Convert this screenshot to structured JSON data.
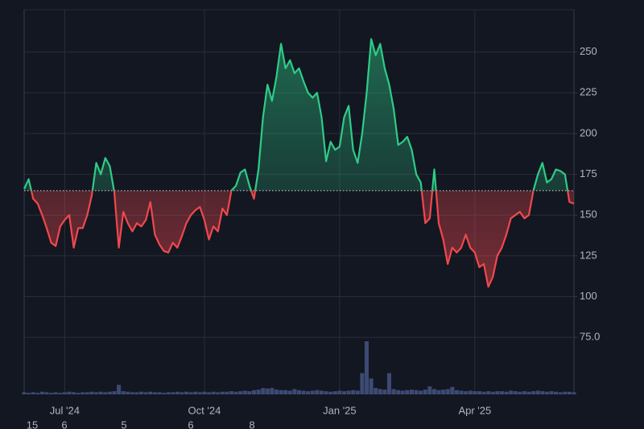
{
  "chart_data": {
    "type": "baseline",
    "categories": [
      null,
      null,
      null,
      null,
      null,
      null,
      null,
      null,
      null,
      "Jul '24",
      null,
      null,
      null,
      null,
      null,
      null,
      null,
      null,
      null,
      null,
      null,
      null,
      null,
      null,
      null,
      null,
      null,
      null,
      null,
      null,
      null,
      null,
      null,
      null,
      null,
      null,
      null,
      null,
      null,
      null,
      "Oct '24",
      null,
      null,
      null,
      null,
      null,
      null,
      null,
      null,
      null,
      null,
      null,
      null,
      null,
      null,
      null,
      null,
      null,
      null,
      null,
      null,
      null,
      null,
      null,
      null,
      null,
      null,
      null,
      null,
      null,
      "Jan '25",
      null,
      null,
      null,
      null,
      null,
      null,
      null,
      null,
      null,
      null,
      null,
      null,
      null,
      null,
      null,
      null,
      null,
      null,
      null,
      null,
      null,
      null,
      null,
      null,
      null,
      null,
      null,
      null,
      null,
      "Apr '25",
      null,
      null,
      null,
      null,
      null,
      null,
      null,
      null,
      null,
      null,
      null,
      null,
      null,
      null,
      null,
      null,
      null,
      null,
      null,
      null,
      null,
      null
    ],
    "values": [
      166,
      172,
      160,
      157,
      150,
      142,
      133,
      131,
      143,
      147,
      150,
      130,
      142,
      142,
      150,
      162,
      182,
      175,
      185,
      180,
      164,
      130,
      152,
      145,
      140,
      145,
      143,
      147,
      158,
      138,
      132,
      128,
      127,
      133,
      130,
      137,
      145,
      150,
      153,
      155,
      147,
      135,
      143,
      140,
      154,
      150,
      165,
      168,
      176,
      178,
      168,
      160,
      178,
      210,
      230,
      220,
      235,
      255,
      240,
      245,
      237,
      240,
      232,
      225,
      222,
      225,
      210,
      183,
      195,
      190,
      192,
      210,
      217,
      190,
      182,
      200,
      225,
      258,
      248,
      255,
      240,
      230,
      215,
      193,
      195,
      198,
      190,
      175,
      170,
      145,
      148,
      178,
      145,
      135,
      120,
      130,
      127,
      130,
      138,
      130,
      127,
      118,
      120,
      106,
      112,
      125,
      130,
      138,
      148,
      150,
      152,
      148,
      150,
      165,
      175,
      182,
      170,
      172,
      178,
      177,
      175,
      158,
      157
    ],
    "volume": [
      4,
      3,
      4,
      3,
      5,
      4,
      3,
      4,
      3,
      4,
      5,
      4,
      3,
      4,
      4,
      5,
      4,
      5,
      4,
      5,
      6,
      18,
      6,
      5,
      4,
      4,
      5,
      4,
      5,
      4,
      4,
      3,
      4,
      4,
      5,
      4,
      5,
      4,
      5,
      4,
      5,
      4,
      5,
      4,
      5,
      5,
      6,
      5,
      6,
      7,
      6,
      8,
      9,
      12,
      11,
      12,
      9,
      8,
      8,
      7,
      10,
      8,
      7,
      6,
      7,
      8,
      7,
      6,
      5,
      6,
      7,
      6,
      7,
      8,
      7,
      40,
      100,
      30,
      12,
      10,
      9,
      40,
      10,
      8,
      7,
      8,
      9,
      8,
      7,
      9,
      15,
      10,
      8,
      9,
      10,
      14,
      8,
      7,
      6,
      7,
      6,
      6,
      5,
      6,
      5,
      6,
      6,
      5,
      7,
      6,
      5,
      6,
      5,
      6,
      7,
      6,
      5,
      6,
      5,
      4,
      5,
      5,
      4
    ],
    "baseline": 165,
    "ylim": [
      40,
      276
    ],
    "yticks": [
      {
        "value": 75,
        "label": "75.0"
      },
      100,
      125,
      150,
      175,
      200,
      225,
      250
    ],
    "grid": true,
    "up_color": "#2ecc87",
    "down_color": "#f0484d",
    "volume_color": "#3d4a73",
    "bottom_labels": [
      "15",
      "6",
      "5",
      "6",
      "8"
    ]
  }
}
